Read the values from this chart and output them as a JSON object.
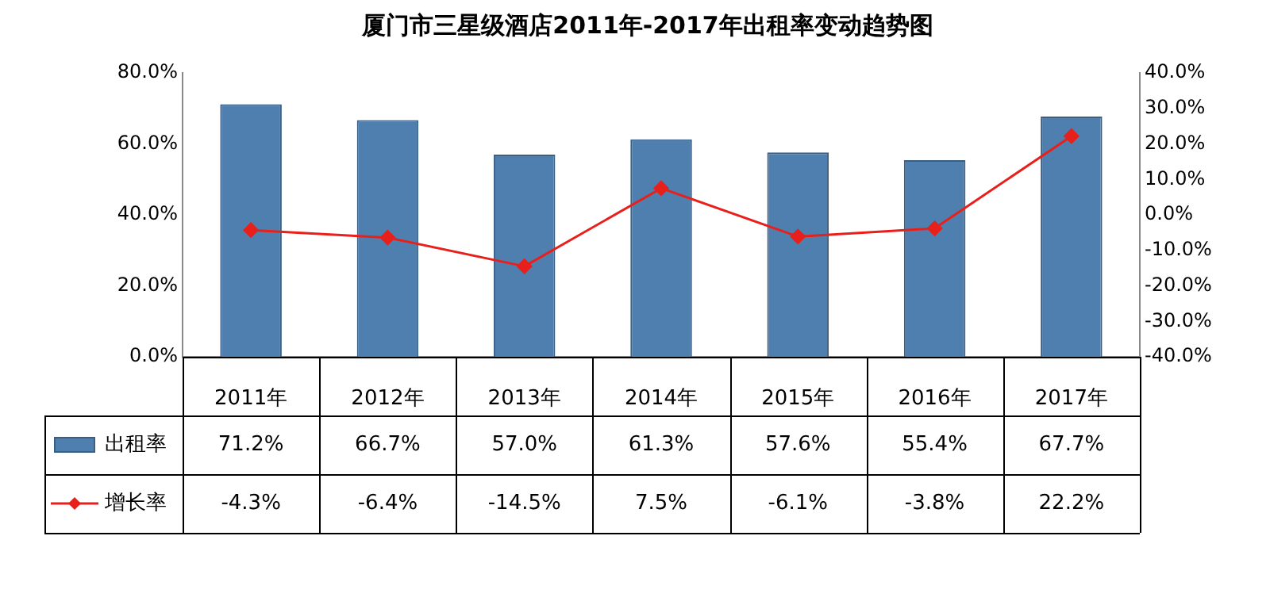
{
  "chart_data": {
    "type": "bar",
    "title": "厦门市三星级酒店2011年-2017年出租率变动趋势图",
    "categories": [
      "2011年",
      "2012年",
      "2013年",
      "2014年",
      "2015年",
      "2016年",
      "2017年"
    ],
    "series": [
      {
        "name": "出租率",
        "color": "#4f7fae",
        "values": [
          71.2,
          66.7,
          57.0,
          61.3,
          57.6,
          55.4,
          67.7
        ],
        "value_labels": [
          "71.2%",
          "66.7%",
          "57.0%",
          "61.3%",
          "57.6%",
          "55.4%",
          "67.7%"
        ]
      },
      {
        "name": "增长率",
        "type": "line",
        "axis": "y2",
        "color": "#e8201c",
        "values": [
          -4.3,
          -6.4,
          -14.5,
          7.5,
          -6.1,
          -3.8,
          22.2
        ],
        "value_labels": [
          "-4.3%",
          "-6.4%",
          "-14.5%",
          "7.5%",
          "-6.1%",
          "-3.8%",
          "22.2%"
        ]
      }
    ],
    "ylim": [
      0,
      80
    ],
    "yticks": [
      {
        "value": 0,
        "label": "0.0%"
      },
      {
        "value": 20,
        "label": "20.0%"
      },
      {
        "value": 40,
        "label": "40.0%"
      },
      {
        "value": 60,
        "label": "60.0%"
      },
      {
        "value": 80,
        "label": "80.0%"
      }
    ],
    "y2lim": [
      -40,
      40
    ],
    "y2ticks": [
      {
        "value": -40,
        "label": "-40.0%"
      },
      {
        "value": -30,
        "label": "-30.0%"
      },
      {
        "value": -20,
        "label": "-20.0%"
      },
      {
        "value": -10,
        "label": "-10.0%"
      },
      {
        "value": 0,
        "label": "0.0%"
      },
      {
        "value": 10,
        "label": "10.0%"
      },
      {
        "value": 20,
        "label": "20.0%"
      },
      {
        "value": 30,
        "label": "30.0%"
      },
      {
        "value": 40,
        "label": "40.0%"
      }
    ],
    "legend": "bottom",
    "marker": "diamond",
    "line_style": "solid"
  }
}
